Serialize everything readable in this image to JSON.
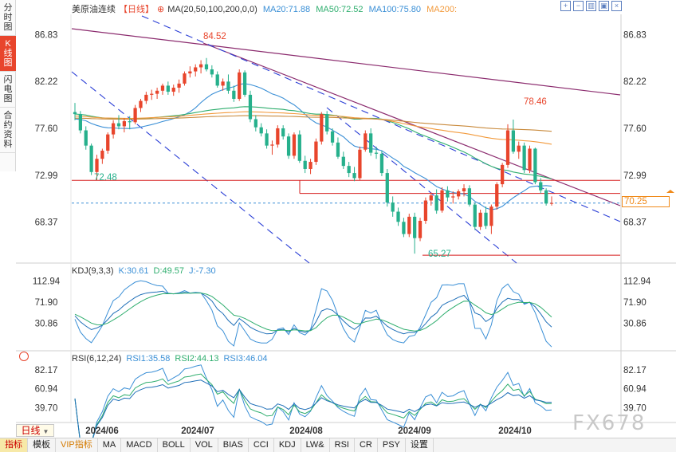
{
  "side_tabs": [
    {
      "label": "分时图",
      "active": false
    },
    {
      "label": "K线图",
      "active": true
    },
    {
      "label": "闪电图",
      "active": false
    },
    {
      "label": "合约资料",
      "active": false
    }
  ],
  "legend": {
    "instrument": "美原油连续",
    "period": "【日线】",
    "settings_icon": "⊕",
    "ma_params": "MA(20,50,100,200,0,0)",
    "ma20": "MA20:71.88",
    "ma50": "MA50:72.52",
    "ma100": "MA100:75.80",
    "ma200": "MA200:"
  },
  "toolbar_icons": [
    "zoom-in-icon",
    "zoom-out-icon",
    "panel-icon",
    "window-icon",
    "close-icon"
  ],
  "colors": {
    "up": "#e8452c",
    "down": "#26b08c",
    "ma20": "#3a8fd6",
    "ma50": "#2fae6e",
    "ma100": "#f29a3c",
    "trend": "#8b2b6e",
    "channel": "#2b3fd6",
    "level": "#d61e1e"
  },
  "price_axis": {
    "labels": [
      "86.83",
      "82.22",
      "77.60",
      "72.99",
      "68.37"
    ]
  },
  "current_price": "70.25",
  "annotations": {
    "high": "84.52",
    "high2": "78.46",
    "low_left": "72.48",
    "low": "65.27"
  },
  "kdj": {
    "title": "KDJ(9,3,3)",
    "k": "K:30.61",
    "d": "D:49.57",
    "j": "J:-7.30",
    "axis": [
      "112.94",
      "71.90",
      "30.86"
    ]
  },
  "rsi": {
    "title": "RSI(6,12,24)",
    "rsi1": "RSI1:35.58",
    "rsi2": "RSI2:44.13",
    "rsi3": "RSI3:46.04",
    "axis": [
      "82.17",
      "60.94",
      "39.70"
    ]
  },
  "date_axis": [
    "2024/06",
    "2024/07",
    "2024/08",
    "2024/09",
    "2024/10"
  ],
  "period_button": "日线",
  "bottom_tabs": [
    "指标",
    "模板",
    "VIP指标",
    "MA",
    "MACD",
    "BOLL",
    "VOL",
    "BIAS",
    "CCI",
    "KDJ",
    "LW&",
    "RSI",
    "CR",
    "PSY",
    "设置"
  ],
  "watermark": "FX678",
  "chart_data": {
    "type": "candlestick",
    "ylim": [
      64.5,
      88.5
    ],
    "candles": [
      [
        79.2,
        80.1,
        78.4,
        79.0
      ],
      [
        79.0,
        79.3,
        77.1,
        77.4
      ],
      [
        77.4,
        77.8,
        75.5,
        75.9
      ],
      [
        75.9,
        76.1,
        73.0,
        73.3
      ],
      [
        73.3,
        75.0,
        72.48,
        74.6
      ],
      [
        74.6,
        75.6,
        74.1,
        75.4
      ],
      [
        75.4,
        77.2,
        75.1,
        77.0
      ],
      [
        77.0,
        78.4,
        76.6,
        78.1
      ],
      [
        78.1,
        78.9,
        77.5,
        77.8
      ],
      [
        77.8,
        78.6,
        77.2,
        78.3
      ],
      [
        78.3,
        78.8,
        77.5,
        78.2
      ],
      [
        78.2,
        79.9,
        78.0,
        79.6
      ],
      [
        79.6,
        80.5,
        79.2,
        80.3
      ],
      [
        80.3,
        81.2,
        80.0,
        80.9
      ],
      [
        80.9,
        81.4,
        80.4,
        81.0
      ],
      [
        81.0,
        81.6,
        80.5,
        81.3
      ],
      [
        81.3,
        82.0,
        80.9,
        81.8
      ],
      [
        81.8,
        82.2,
        80.9,
        81.2
      ],
      [
        81.2,
        81.9,
        80.8,
        81.6
      ],
      [
        81.6,
        82.4,
        81.1,
        82.0
      ],
      [
        82.0,
        83.2,
        81.8,
        83.0
      ],
      [
        83.0,
        83.7,
        82.6,
        83.2
      ],
      [
        83.2,
        83.9,
        82.7,
        83.6
      ],
      [
        83.6,
        84.3,
        83.0,
        83.9
      ],
      [
        83.9,
        84.52,
        83.2,
        83.4
      ],
      [
        83.4,
        83.8,
        82.6,
        82.9
      ],
      [
        82.9,
        83.2,
        81.6,
        81.8
      ],
      [
        81.8,
        82.5,
        81.3,
        82.2
      ],
      [
        82.2,
        82.9,
        81.0,
        81.3
      ],
      [
        81.3,
        81.8,
        80.2,
        80.5
      ],
      [
        80.5,
        83.4,
        80.3,
        83.1
      ],
      [
        83.1,
        83.3,
        80.7,
        80.9
      ],
      [
        80.9,
        81.3,
        78.2,
        78.5
      ],
      [
        78.5,
        78.9,
        77.3,
        77.7
      ],
      [
        77.7,
        78.1,
        76.8,
        77.1
      ],
      [
        77.1,
        77.5,
        75.6,
        75.9
      ],
      [
        75.9,
        76.4,
        75.0,
        76.0
      ],
      [
        76.0,
        77.9,
        75.7,
        77.6
      ],
      [
        77.6,
        77.9,
        76.5,
        76.8
      ],
      [
        76.8,
        77.1,
        74.6,
        74.9
      ],
      [
        74.9,
        77.2,
        74.6,
        77.0
      ],
      [
        77.0,
        77.4,
        74.2,
        74.4
      ],
      [
        74.4,
        74.9,
        73.2,
        73.6
      ],
      [
        73.6,
        74.6,
        73.1,
        74.3
      ],
      [
        74.3,
        76.6,
        74.0,
        76.3
      ],
      [
        76.3,
        79.2,
        76.0,
        79.0
      ],
      [
        79.0,
        79.3,
        77.0,
        77.3
      ],
      [
        77.3,
        77.6,
        75.9,
        76.2
      ],
      [
        76.2,
        76.7,
        74.6,
        74.8
      ],
      [
        74.8,
        75.3,
        73.6,
        73.9
      ],
      [
        73.9,
        74.3,
        72.8,
        73.2
      ],
      [
        73.2,
        73.8,
        72.4,
        72.7
      ],
      [
        72.7,
        75.8,
        72.5,
        75.5
      ],
      [
        75.5,
        77.4,
        75.3,
        77.1
      ],
      [
        77.1,
        77.6,
        74.9,
        75.2
      ],
      [
        75.2,
        75.8,
        74.6,
        75.1
      ],
      [
        75.1,
        75.4,
        72.9,
        73.2
      ],
      [
        73.2,
        73.6,
        69.9,
        70.3
      ],
      [
        70.3,
        70.9,
        68.9,
        69.4
      ],
      [
        69.4,
        69.8,
        68.0,
        68.4
      ],
      [
        68.4,
        68.8,
        66.9,
        67.2
      ],
      [
        67.2,
        69.2,
        66.9,
        68.9
      ],
      [
        68.9,
        69.3,
        65.27,
        66.8
      ],
      [
        66.8,
        68.8,
        66.5,
        68.5
      ],
      [
        68.5,
        70.8,
        68.2,
        70.5
      ],
      [
        70.5,
        71.3,
        70.0,
        71.0
      ],
      [
        71.0,
        71.6,
        69.2,
        69.5
      ],
      [
        69.5,
        71.8,
        69.3,
        71.5
      ],
      [
        71.5,
        71.9,
        70.4,
        70.8
      ],
      [
        70.8,
        71.4,
        70.2,
        70.9
      ],
      [
        70.9,
        71.6,
        70.6,
        71.4
      ],
      [
        71.4,
        72.1,
        70.9,
        71.7
      ],
      [
        71.7,
        72.0,
        69.9,
        70.1
      ],
      [
        70.1,
        70.3,
        67.6,
        67.9
      ],
      [
        67.9,
        69.6,
        67.6,
        69.3
      ],
      [
        69.3,
        69.9,
        67.7,
        68.0
      ],
      [
        68.0,
        70.1,
        67.2,
        69.9
      ],
      [
        69.9,
        72.3,
        69.6,
        72.1
      ],
      [
        72.1,
        74.2,
        71.8,
        74.0
      ],
      [
        74.0,
        78.0,
        73.7,
        77.4
      ],
      [
        77.4,
        78.46,
        75.1,
        75.3
      ],
      [
        75.3,
        76.3,
        74.6,
        75.9
      ],
      [
        75.9,
        76.2,
        73.2,
        73.5
      ],
      [
        73.5,
        75.9,
        73.2,
        75.6
      ],
      [
        75.6,
        75.7,
        72.1,
        72.3
      ],
      [
        72.3,
        72.7,
        71.2,
        71.5
      ],
      [
        71.5,
        71.7,
        70.0,
        70.2
      ],
      [
        70.2,
        70.9,
        70.0,
        70.25
      ]
    ]
  }
}
